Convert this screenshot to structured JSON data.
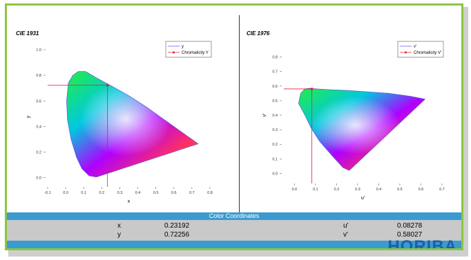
{
  "chart_data": [
    {
      "type": "scatter",
      "title": "CIE 1931",
      "xlabel": "x",
      "ylabel": "y",
      "xlim": [
        -0.1,
        0.8
      ],
      "ylim": [
        -0.05,
        1.0
      ],
      "xticks": [
        "-0.1",
        "0.0",
        "0.1",
        "0.2",
        "0.3",
        "0.4",
        "0.5",
        "0.6",
        "0.7",
        "0.8"
      ],
      "yticks": [
        "0.0",
        "0.2",
        "0.4",
        "0.6",
        "0.8",
        "1.0"
      ],
      "legend": "top-right",
      "series": [
        {
          "name": "y",
          "color": "#5a5adf",
          "type": "line",
          "x": [
            0.735,
            0.7,
            0.64,
            0.55,
            0.45,
            0.35,
            0.25,
            0.17,
            0.11,
            0.07,
            0.04,
            0.015,
            0.005,
            0.01,
            0.03,
            0.06,
            0.09,
            0.13,
            0.17,
            0.735
          ],
          "y": [
            0.265,
            0.3,
            0.36,
            0.45,
            0.55,
            0.64,
            0.72,
            0.78,
            0.83,
            0.83,
            0.8,
            0.74,
            0.6,
            0.45,
            0.3,
            0.16,
            0.07,
            0.015,
            0.005,
            0.265
          ]
        },
        {
          "name": "Chromaticity Y",
          "color": "#e0202f",
          "type": "point",
          "x": [
            0.23192
          ],
          "y": [
            0.72256
          ]
        }
      ]
    },
    {
      "type": "scatter",
      "title": "CIE 1976",
      "xlabel": "u'",
      "ylabel": "v'",
      "xlim": [
        -0.05,
        0.7
      ],
      "ylim": [
        -0.05,
        0.85
      ],
      "xticks": [
        "0.0",
        "0.1",
        "0.2",
        "0.3",
        "0.4",
        "0.5",
        "0.6",
        "0.7"
      ],
      "yticks": [
        "0.0",
        "0.1",
        "0.2",
        "0.3",
        "0.4",
        "0.5",
        "0.6",
        "0.7",
        "0.8"
      ],
      "legend": "top-right",
      "series": [
        {
          "name": "v'",
          "color": "#5a5adf",
          "type": "line",
          "x": [
            0.62,
            0.55,
            0.45,
            0.35,
            0.25,
            0.17,
            0.11,
            0.07,
            0.05,
            0.03,
            0.02,
            0.05,
            0.08,
            0.12,
            0.18,
            0.23,
            0.26,
            0.62
          ],
          "y": [
            0.51,
            0.53,
            0.55,
            0.56,
            0.57,
            0.575,
            0.58,
            0.585,
            0.58,
            0.55,
            0.48,
            0.4,
            0.31,
            0.22,
            0.12,
            0.04,
            0.02,
            0.51
          ]
        },
        {
          "name": "Chromaticity V'",
          "color": "#e0202f",
          "type": "point",
          "x": [
            0.08278
          ],
          "y": [
            0.58027
          ]
        }
      ]
    }
  ],
  "coordinates": {
    "title": "Color Coordinates",
    "rows": [
      {
        "label1": "x",
        "value1": "0.23192",
        "label2": "u'",
        "value2": "0.08278"
      },
      {
        "label1": "y",
        "value1": "0.72256",
        "label2": "v'",
        "value2": "0.58027"
      }
    ]
  },
  "brand": {
    "logo_text": "HORIBA",
    "accent": "#8cc63f",
    "band": "#3a9bd0"
  }
}
